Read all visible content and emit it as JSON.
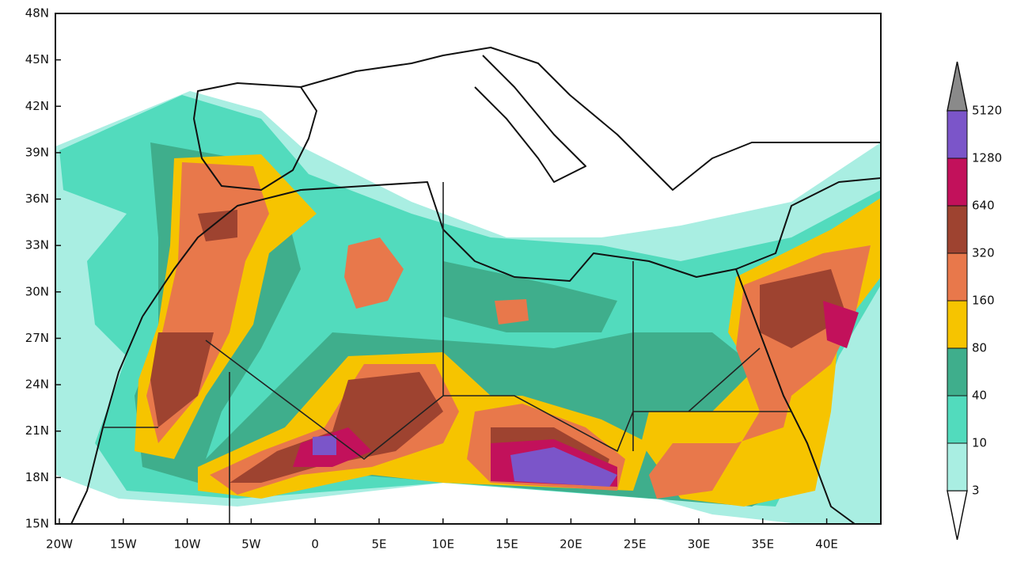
{
  "map": {
    "lat_labels": [
      "15N",
      "18N",
      "21N",
      "24N",
      "27N",
      "30N",
      "33N",
      "36N",
      "39N",
      "42N",
      "45N",
      "48N"
    ],
    "lon_labels": [
      "20W",
      "15W",
      "10W",
      "5W",
      "0",
      "5E",
      "10E",
      "15E",
      "20E",
      "25E",
      "30E",
      "35E",
      "40E"
    ],
    "colorbar": {
      "levels": [
        "3",
        "10",
        "40",
        "80",
        "160",
        "320",
        "640",
        "1280",
        "5120"
      ],
      "colors": [
        "#ffffff",
        "#a9eee2",
        "#52dbbd",
        "#3fae8c",
        "#f6c400",
        "#e8784b",
        "#9e4330",
        "#c2115b",
        "#7b55c9",
        "#8a8a8a"
      ]
    }
  }
}
